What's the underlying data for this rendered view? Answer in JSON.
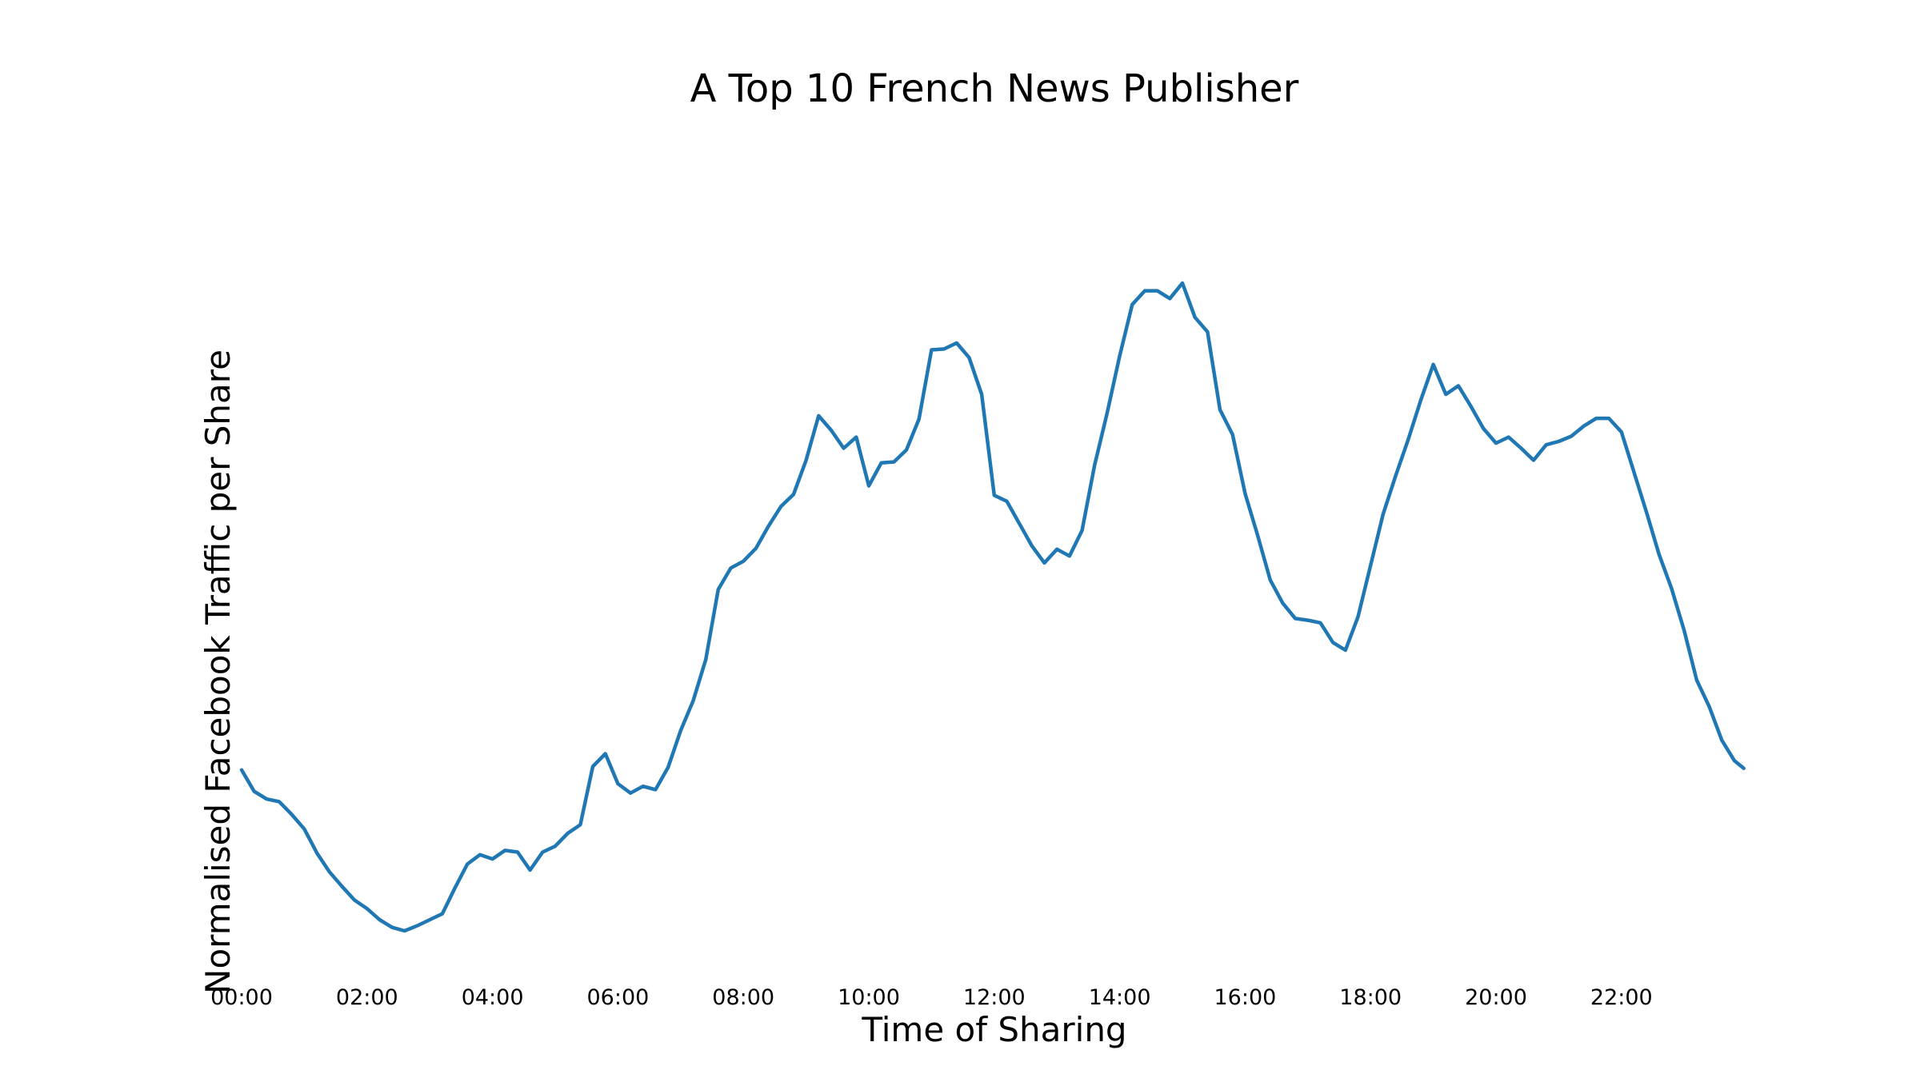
{
  "chart_data": {
    "type": "line",
    "title": "A Top 10 French News Publisher",
    "xlabel": "Time of Sharing",
    "ylabel": "Normalised Facebook Traffic per Share",
    "x_unit": "hours",
    "xlim": [
      0,
      24
    ],
    "ylim": [
      0,
      100
    ],
    "grid": false,
    "legend": "none",
    "xticks": [
      {
        "value": 0,
        "label": "00:00"
      },
      {
        "value": 2,
        "label": "02:00"
      },
      {
        "value": 4,
        "label": "04:00"
      },
      {
        "value": 6,
        "label": "06:00"
      },
      {
        "value": 8,
        "label": "08:00"
      },
      {
        "value": 10,
        "label": "10:00"
      },
      {
        "value": 12,
        "label": "12:00"
      },
      {
        "value": 14,
        "label": "14:00"
      },
      {
        "value": 16,
        "label": "16:00"
      },
      {
        "value": 18,
        "label": "18:00"
      },
      {
        "value": 20,
        "label": "20:00"
      },
      {
        "value": 22,
        "label": "22:00"
      }
    ],
    "series": [
      {
        "color": "#1f77b4",
        "points": [
          [
            0.0,
            23.1
          ],
          [
            0.2,
            20.6
          ],
          [
            0.4,
            19.7
          ],
          [
            0.6,
            19.4
          ],
          [
            0.8,
            17.9
          ],
          [
            1.0,
            16.2
          ],
          [
            1.2,
            13.4
          ],
          [
            1.4,
            11.2
          ],
          [
            1.6,
            9.5
          ],
          [
            1.8,
            7.9
          ],
          [
            2.0,
            6.9
          ],
          [
            2.2,
            5.6
          ],
          [
            2.4,
            4.7
          ],
          [
            2.6,
            4.3
          ],
          [
            2.8,
            4.9
          ],
          [
            3.0,
            5.6
          ],
          [
            3.2,
            6.3
          ],
          [
            3.4,
            9.3
          ],
          [
            3.6,
            12.1
          ],
          [
            3.8,
            13.2
          ],
          [
            4.0,
            12.7
          ],
          [
            4.2,
            13.7
          ],
          [
            4.4,
            13.5
          ],
          [
            4.6,
            11.4
          ],
          [
            4.8,
            13.5
          ],
          [
            5.0,
            14.2
          ],
          [
            5.2,
            15.7
          ],
          [
            5.4,
            16.7
          ],
          [
            5.6,
            23.5
          ],
          [
            5.8,
            25.0
          ],
          [
            6.0,
            21.5
          ],
          [
            6.2,
            20.4
          ],
          [
            6.4,
            21.2
          ],
          [
            6.6,
            20.8
          ],
          [
            6.8,
            23.4
          ],
          [
            7.0,
            27.7
          ],
          [
            7.2,
            31.2
          ],
          [
            7.4,
            36.0
          ],
          [
            7.6,
            44.2
          ],
          [
            7.8,
            46.7
          ],
          [
            8.0,
            47.5
          ],
          [
            8.2,
            49.0
          ],
          [
            8.4,
            51.6
          ],
          [
            8.6,
            53.9
          ],
          [
            8.8,
            55.3
          ],
          [
            9.0,
            59.3
          ],
          [
            9.2,
            64.5
          ],
          [
            9.4,
            62.8
          ],
          [
            9.6,
            60.7
          ],
          [
            9.8,
            62.0
          ],
          [
            10.0,
            56.3
          ],
          [
            10.2,
            59.0
          ],
          [
            10.4,
            59.1
          ],
          [
            10.6,
            60.5
          ],
          [
            10.8,
            64.1
          ],
          [
            11.0,
            72.2
          ],
          [
            11.2,
            72.3
          ],
          [
            11.4,
            73.0
          ],
          [
            11.6,
            71.3
          ],
          [
            11.8,
            67.0
          ],
          [
            12.0,
            55.2
          ],
          [
            12.2,
            54.5
          ],
          [
            12.4,
            51.9
          ],
          [
            12.6,
            49.3
          ],
          [
            12.8,
            47.3
          ],
          [
            13.0,
            48.9
          ],
          [
            13.2,
            48.1
          ],
          [
            13.4,
            51.1
          ],
          [
            13.6,
            58.7
          ],
          [
            13.8,
            64.8
          ],
          [
            14.0,
            71.5
          ],
          [
            14.2,
            77.5
          ],
          [
            14.4,
            79.1
          ],
          [
            14.6,
            79.1
          ],
          [
            14.8,
            78.2
          ],
          [
            15.0,
            80.0
          ],
          [
            15.2,
            76.0
          ],
          [
            15.4,
            74.3
          ],
          [
            15.6,
            65.2
          ],
          [
            15.8,
            62.3
          ],
          [
            16.0,
            55.4
          ],
          [
            16.2,
            50.5
          ],
          [
            16.4,
            45.3
          ],
          [
            16.6,
            42.6
          ],
          [
            16.8,
            40.8
          ],
          [
            17.0,
            40.6
          ],
          [
            17.2,
            40.3
          ],
          [
            17.4,
            38.0
          ],
          [
            17.6,
            37.1
          ],
          [
            17.8,
            41.0
          ],
          [
            18.0,
            47.0
          ],
          [
            18.2,
            53.0
          ],
          [
            18.4,
            57.5
          ],
          [
            18.6,
            61.7
          ],
          [
            18.8,
            66.3
          ],
          [
            19.0,
            70.5
          ],
          [
            19.2,
            67.0
          ],
          [
            19.4,
            68.0
          ],
          [
            19.6,
            65.6
          ],
          [
            19.8,
            63.0
          ],
          [
            20.0,
            61.3
          ],
          [
            20.2,
            62.0
          ],
          [
            20.4,
            60.7
          ],
          [
            20.6,
            59.3
          ],
          [
            20.8,
            61.1
          ],
          [
            21.0,
            61.5
          ],
          [
            21.2,
            62.1
          ],
          [
            21.4,
            63.3
          ],
          [
            21.6,
            64.2
          ],
          [
            21.8,
            64.2
          ],
          [
            22.0,
            62.6
          ],
          [
            22.2,
            57.9
          ],
          [
            22.4,
            53.2
          ],
          [
            22.6,
            48.3
          ],
          [
            22.8,
            44.3
          ],
          [
            23.0,
            39.4
          ],
          [
            23.2,
            33.6
          ],
          [
            23.4,
            30.5
          ],
          [
            23.6,
            26.6
          ],
          [
            23.8,
            24.2
          ],
          [
            23.95,
            23.3
          ]
        ]
      }
    ]
  }
}
